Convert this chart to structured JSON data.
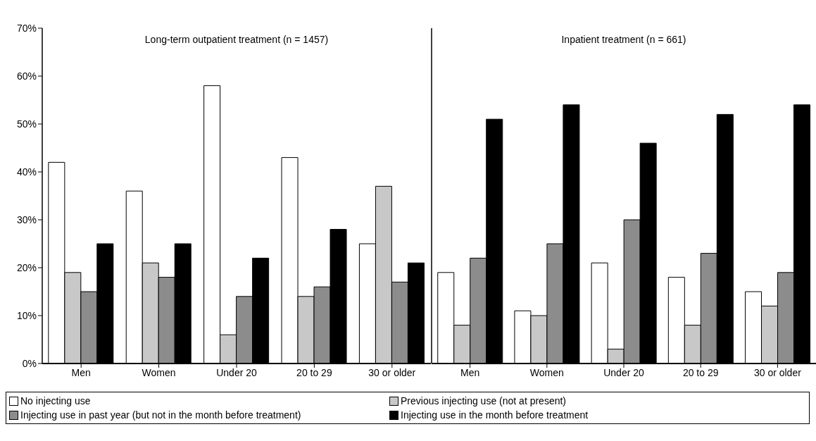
{
  "chart_data": [
    {
      "type": "bar",
      "title": "Long-term outpatient treatment (n = 1457)",
      "categories": [
        "Men",
        "Women",
        "Under 20",
        "20 to 29",
        "30 or older"
      ],
      "series": [
        {
          "name": "No injecting use",
          "color": "#ffffff",
          "values": [
            42,
            36,
            58,
            43,
            25
          ]
        },
        {
          "name": "Previous injecting use (not at present)",
          "color": "#c8c8c8",
          "values": [
            19,
            21,
            6,
            14,
            37
          ]
        },
        {
          "name": "Injecting use in past year (but not in the month before treatment)",
          "color": "#8c8c8c",
          "values": [
            15,
            18,
            14,
            16,
            17
          ]
        },
        {
          "name": "Injecting use in the month before treatment",
          "color": "#000000",
          "values": [
            25,
            25,
            22,
            28,
            21
          ]
        }
      ],
      "ylim": [
        0,
        70
      ],
      "yticks": [
        {
          "value": 0,
          "label": "0%"
        },
        {
          "value": 10,
          "label": "10%"
        },
        {
          "value": 20,
          "label": "20%"
        },
        {
          "value": 30,
          "label": "30%"
        },
        {
          "value": 40,
          "label": "40%"
        },
        {
          "value": 50,
          "label": "50%"
        },
        {
          "value": 60,
          "label": "60%"
        },
        {
          "value": 70,
          "label": "70%"
        }
      ],
      "grid": false,
      "legend": "bottom"
    },
    {
      "type": "bar",
      "title": "Inpatient treatment (n = 661)",
      "categories": [
        "Men",
        "Women",
        "Under 20",
        "20 to 29",
        "30 or older"
      ],
      "series": [
        {
          "color": "#ffffff",
          "values": [
            19,
            11,
            21,
            18,
            15
          ]
        },
        {
          "color": "#c8c8c8",
          "values": [
            8,
            10,
            3,
            8,
            12
          ]
        },
        {
          "color": "#8c8c8c",
          "values": [
            22,
            25,
            30,
            23,
            19
          ]
        },
        {
          "color": "#000000",
          "values": [
            51,
            54,
            46,
            52,
            54
          ]
        }
      ],
      "ylim": [
        0,
        70
      ],
      "grid": false,
      "tick_labels": "x"
    }
  ]
}
